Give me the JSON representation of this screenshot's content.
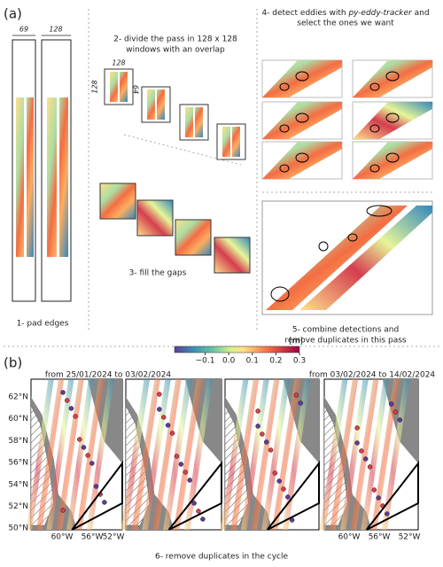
{
  "panel_a": {
    "label": "(a)",
    "step1": {
      "width_original": "69",
      "width_padded": "128",
      "caption": "1- pad edges"
    },
    "step2": {
      "caption_lines": [
        "2- divide the pass in 128 x 128",
        "windows with an overlap"
      ],
      "dim_top": "128",
      "dim_left": "128",
      "dim_overlap": "64"
    },
    "step3": {
      "caption": "3- fill the gaps"
    },
    "step4": {
      "caption_parts": [
        "4- detect eddies with ",
        "py-eddy-tracker",
        " and"
      ],
      "caption_line2": "select the ones we want"
    },
    "step5": {
      "caption_lines": [
        "5- combine detections and",
        "remove duplicates in this pass"
      ]
    }
  },
  "panel_b": {
    "label": "(b)",
    "period_left": "from 25/01/2024 to 03/02/2024",
    "period_right": "from 03/02/2024 to 14/02/2024",
    "colorbar": {
      "unit": "[m]",
      "lim": [
        -0.23,
        0.3
      ],
      "ticks": [
        {
          "value": -0.1,
          "label": "−0.1"
        },
        {
          "value": 0,
          "label": "0.0"
        },
        {
          "value": 0.1,
          "label": "0.1"
        },
        {
          "value": 0.2,
          "label": "0.2"
        },
        {
          "value": 0.3,
          "label": "0.3"
        }
      ]
    },
    "lat_labels": [
      "62°N",
      "60°N",
      "58°N",
      "56°N",
      "54°N",
      "52°N",
      "50°N"
    ],
    "lon_labels_left": [
      "60°W",
      "56°W",
      "52°W"
    ],
    "lon_labels_right": [
      "60°W",
      "56°W",
      "52°W"
    ],
    "caption": "6- remove duplicates in the cycle"
  }
}
